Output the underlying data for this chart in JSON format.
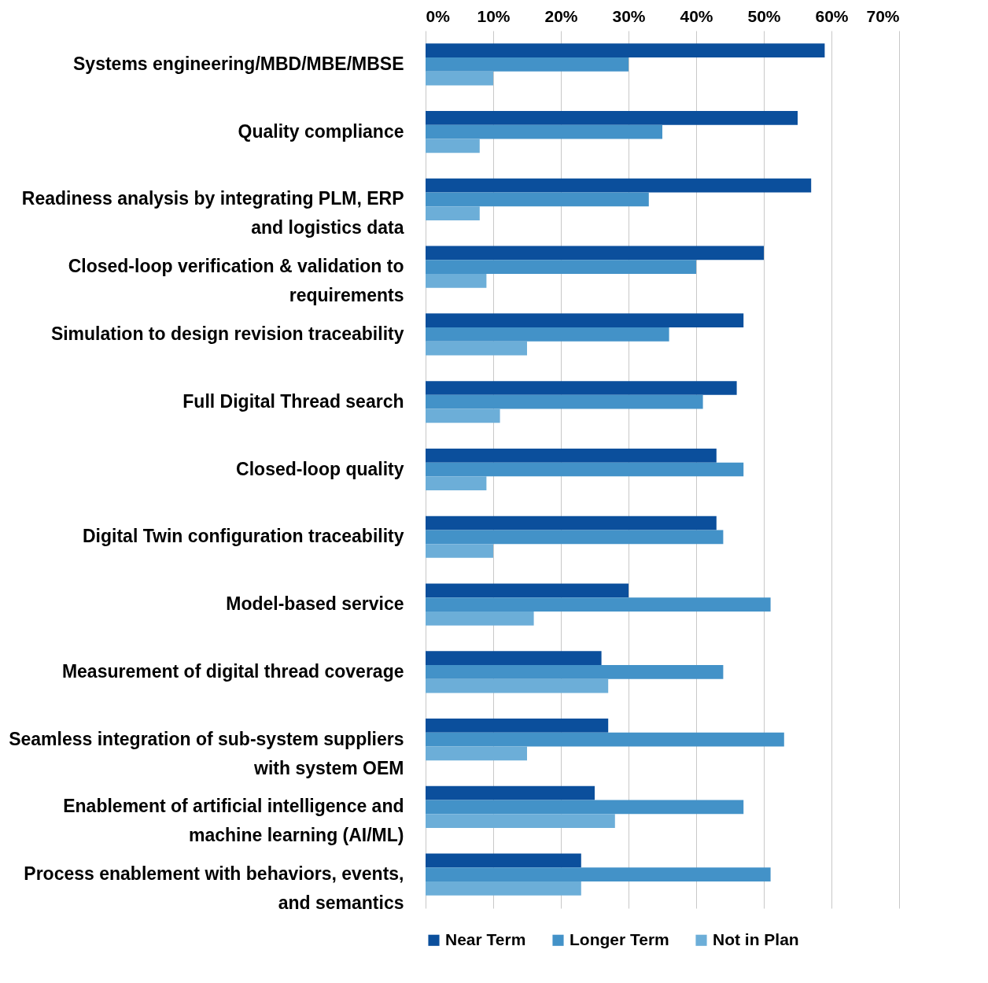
{
  "chart_data": {
    "type": "bar",
    "orientation": "horizontal",
    "categories": [
      "Systems engineering/MBD/MBE/MBSE",
      "Quality compliance",
      "Readiness analysis by integrating PLM, ERP and logistics data",
      "Closed-loop verification & validation to requirements",
      "Simulation to design revision traceability",
      "Full Digital Thread search",
      "Closed-loop quality",
      "Digital Twin configuration traceability",
      "Model-based service",
      "Measurement of digital thread coverage",
      "Seamless integration of sub-system suppliers with system OEM",
      "Enablement of artificial intelligence and machine learning (AI/ML)",
      "Process enablement with behaviors, events, and semantics"
    ],
    "series": [
      {
        "name": "Near Term",
        "color": "#0b4f9c",
        "values": [
          59,
          55,
          57,
          50,
          47,
          46,
          43,
          43,
          30,
          26,
          27,
          25,
          23
        ]
      },
      {
        "name": "Longer Term",
        "color": "#4392c8",
        "values": [
          30,
          35,
          33,
          40,
          36,
          41,
          47,
          44,
          51,
          44,
          53,
          47,
          51
        ]
      },
      {
        "name": "Not in Plan",
        "color": "#6caed8",
        "values": [
          10,
          8,
          8,
          9,
          15,
          11,
          9,
          10,
          16,
          27,
          15,
          28,
          23
        ]
      }
    ],
    "xlim": [
      0,
      70
    ],
    "xticks": [
      {
        "value": 0,
        "label": "0%"
      },
      {
        "value": 10,
        "label": "10%"
      },
      {
        "value": 20,
        "label": "20%"
      },
      {
        "value": 30,
        "label": "30%"
      },
      {
        "value": 40,
        "label": "40%"
      },
      {
        "value": 50,
        "label": "50%"
      },
      {
        "value": 60,
        "label": "60%"
      },
      {
        "value": 70,
        "label": "70%"
      }
    ],
    "grid": "x",
    "legend": "bottom"
  }
}
